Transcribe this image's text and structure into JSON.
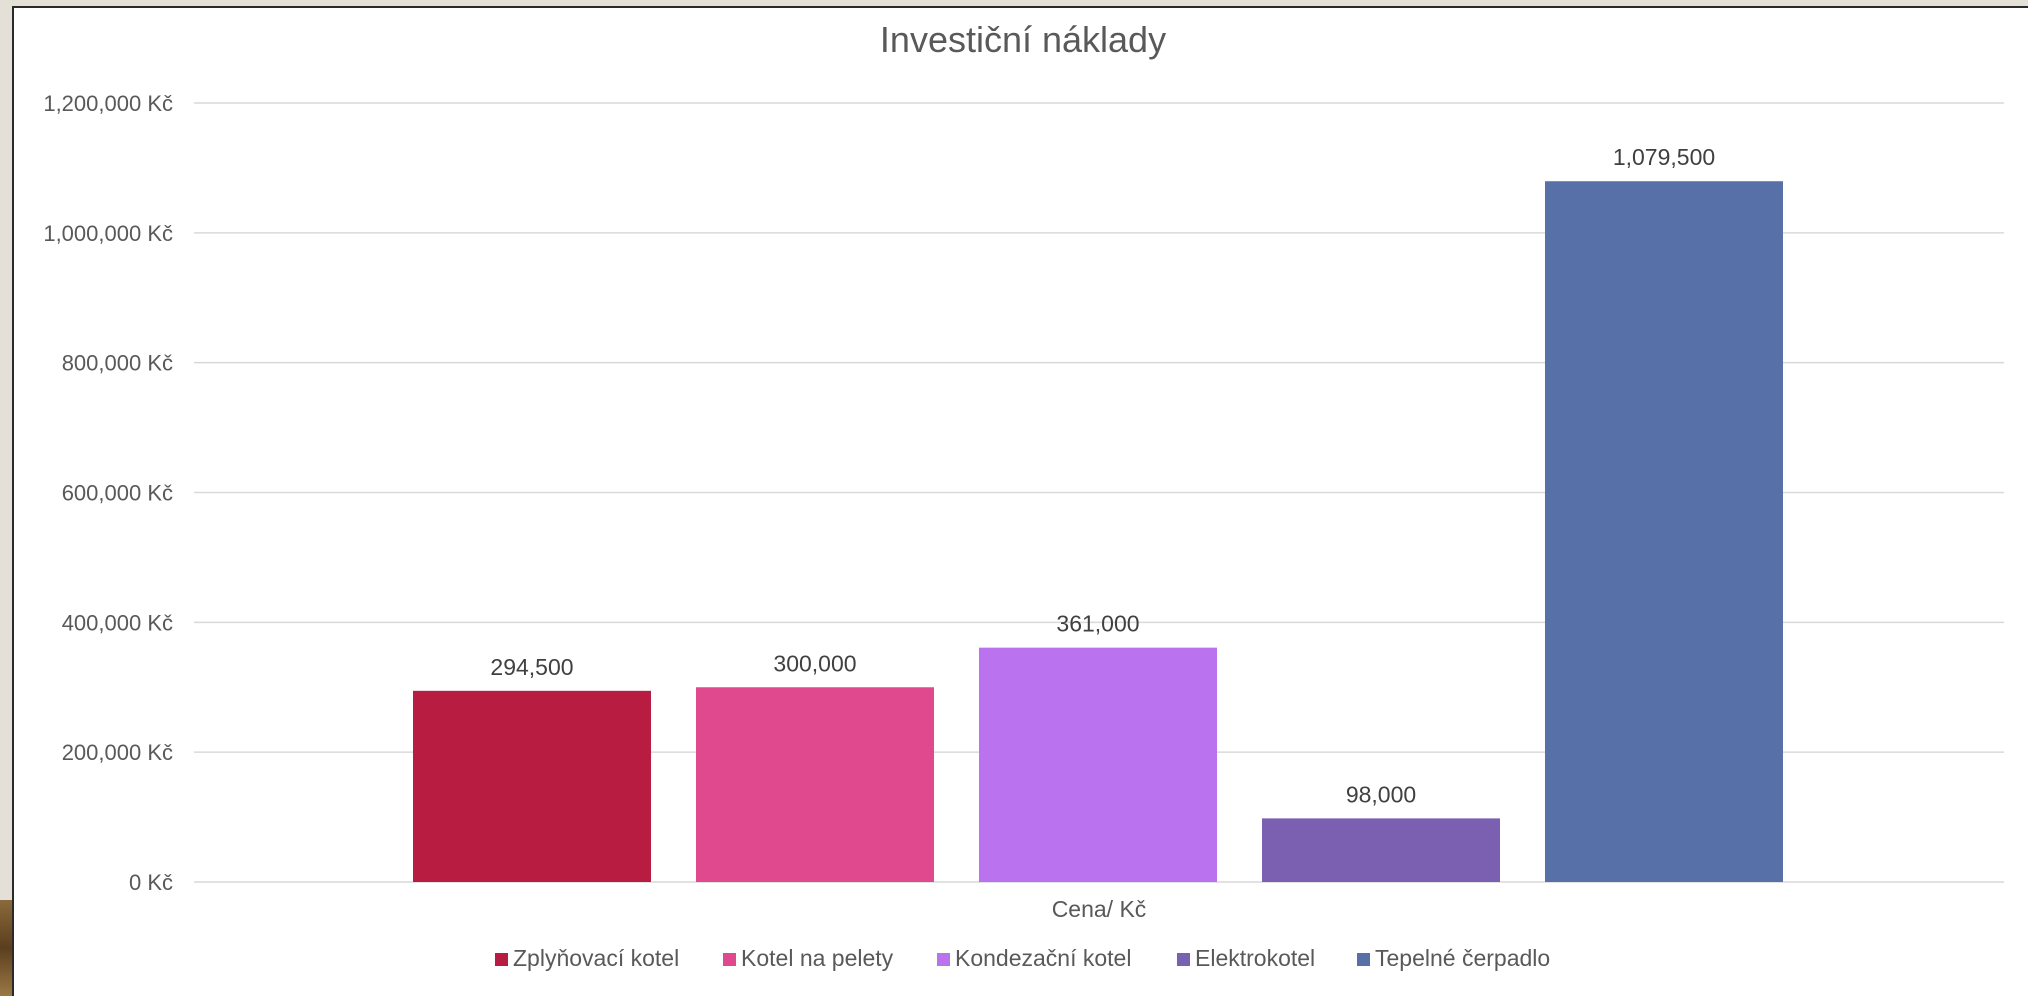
{
  "chart_data": {
    "type": "bar",
    "title": "Investiční náklady",
    "xlabel": "Cena/ Kč",
    "ylabel": "",
    "categories": [
      "Cena/ Kč"
    ],
    "ylim": [
      0,
      1200000
    ],
    "ytick_step": 200000,
    "ytick_labels": [
      "0 Kč",
      "200,000 Kč",
      "400,000 Kč",
      "600,000 Kč",
      "800,000 Kč",
      "1,000,000 Kč",
      "1,200,000 Kč"
    ],
    "grid": true,
    "legend_position": "bottom",
    "series": [
      {
        "name": "Zplyňovací kotel",
        "value": 294500,
        "label": "294,500",
        "color": "#b81c40"
      },
      {
        "name": "Kotel na pelety",
        "value": 300000,
        "label": "300,000",
        "color": "#e0498d"
      },
      {
        "name": "Kondezační kotel",
        "value": 361000,
        "label": "361,000",
        "color": "#bb72ef"
      },
      {
        "name": "Elektrokotel",
        "value": 98000,
        "label": "98,000",
        "color": "#7b5fb0"
      },
      {
        "name": "Tepelné čerpadlo",
        "value": 1079500,
        "label": "1,079,500",
        "color": "#5870a8"
      }
    ]
  }
}
